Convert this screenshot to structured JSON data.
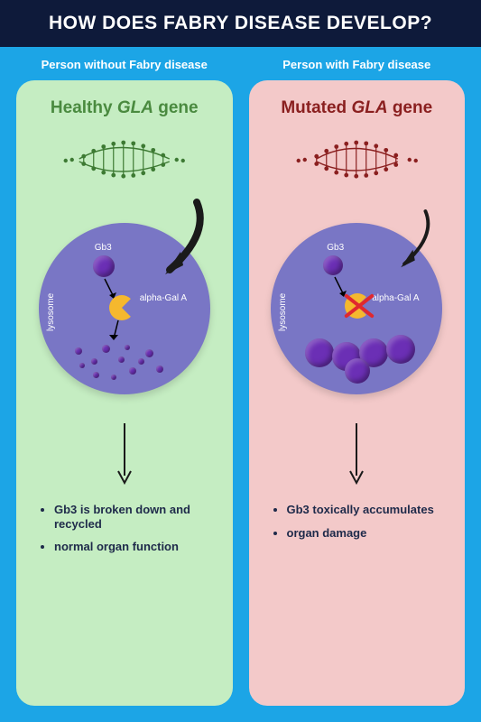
{
  "title": "HOW DOES FABRY DISEASE DEVELOP?",
  "colors": {
    "header_bg": "#0e1a3a",
    "header_text": "#ffffff",
    "body_bg": "#1ca5e6",
    "healthy_panel": "#c5edc2",
    "mutated_panel": "#f3c9c9",
    "healthy_title": "#4a8a3f",
    "mutated_title": "#8a1f1f",
    "cell_bg": "#7976c5",
    "gb3_sphere": "#6b2fb5",
    "pacman": "#f5b82e",
    "dna_healthy": "#3d7a33",
    "dna_mutated": "#8a1f1f",
    "arrow": "#1a1a1a",
    "result_text": "#1e2a4a"
  },
  "healthy": {
    "header": "Person without Fabry disease",
    "gene_prefix": "Healthy ",
    "gene_name": "GLA",
    "gene_suffix": " gene",
    "gb3": "Gb3",
    "alpha": "alpha-Gal A",
    "lysosome": "lysosome",
    "results": [
      "Gb3 is broken down and recycled",
      "normal organ function"
    ]
  },
  "mutated": {
    "header": "Person with Fabry disease",
    "gene_prefix": "Mutated ",
    "gene_name": "GLA",
    "gene_suffix": " gene",
    "gb3": "Gb3",
    "alpha": "alpha-Gal A",
    "lysosome": "lysosome",
    "results": [
      "Gb3 toxically accumulates",
      "organ damage"
    ]
  }
}
